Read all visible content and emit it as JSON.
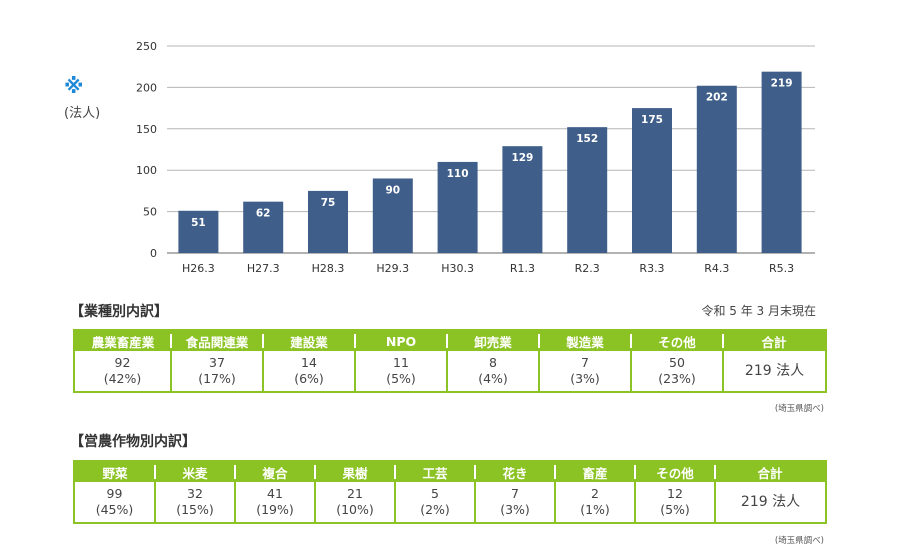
{
  "chart_data": {
    "type": "bar",
    "title": "",
    "xlabel": "",
    "ylabel": "(法人)",
    "ylabel_mark": "※",
    "categories": [
      "H26.3",
      "H27.3",
      "H28.3",
      "H29.3",
      "H30.3",
      "R1.3",
      "R2.3",
      "R3.3",
      "R4.3",
      "R5.3"
    ],
    "values": [
      51,
      62,
      75,
      90,
      110,
      129,
      152,
      175,
      202,
      219
    ],
    "ylim": [
      0,
      250
    ],
    "yticks": [
      0,
      50,
      100,
      150,
      200,
      250
    ],
    "grid": true,
    "bar_color": "#3f5f8a",
    "data_labels": true
  },
  "industry": {
    "title": "【業種別内訳】",
    "as_of": "令和 5 年 3 月末現在",
    "source": "(埼玉県調べ)",
    "columns": [
      {
        "label": "農業畜産業",
        "count": "92",
        "pct": "(42%)"
      },
      {
        "label": "食品関連業",
        "count": "37",
        "pct": "(17%)"
      },
      {
        "label": "建設業",
        "count": "14",
        "pct": "(6%)"
      },
      {
        "label": "NPO",
        "count": "11",
        "pct": "(5%)"
      },
      {
        "label": "卸売業",
        "count": "8",
        "pct": "(4%)"
      },
      {
        "label": "製造業",
        "count": "7",
        "pct": "(3%)"
      },
      {
        "label": "その他",
        "count": "50",
        "pct": "(23%)"
      }
    ],
    "total_label": "合計",
    "total_value": "219 法人"
  },
  "crop": {
    "title": "【営農作物別内訳】",
    "source": "(埼玉県調べ)",
    "columns": [
      {
        "label": "野菜",
        "count": "99",
        "pct": "(45%)"
      },
      {
        "label": "米麦",
        "count": "32",
        "pct": "(15%)"
      },
      {
        "label": "複合",
        "count": "41",
        "pct": "(19%)"
      },
      {
        "label": "果樹",
        "count": "21",
        "pct": "(10%)"
      },
      {
        "label": "工芸",
        "count": "5",
        "pct": "(2%)"
      },
      {
        "label": "花き",
        "count": "7",
        "pct": "(3%)"
      },
      {
        "label": "畜産",
        "count": "2",
        "pct": "(1%)"
      },
      {
        "label": "その他",
        "count": "12",
        "pct": "(5%)"
      }
    ],
    "total_label": "合計",
    "total_value": "219 法人"
  },
  "colors": {
    "accent_green": "#8cc324",
    "bar_blue": "#3f5f8a",
    "note_blue": "#1e88d8"
  }
}
